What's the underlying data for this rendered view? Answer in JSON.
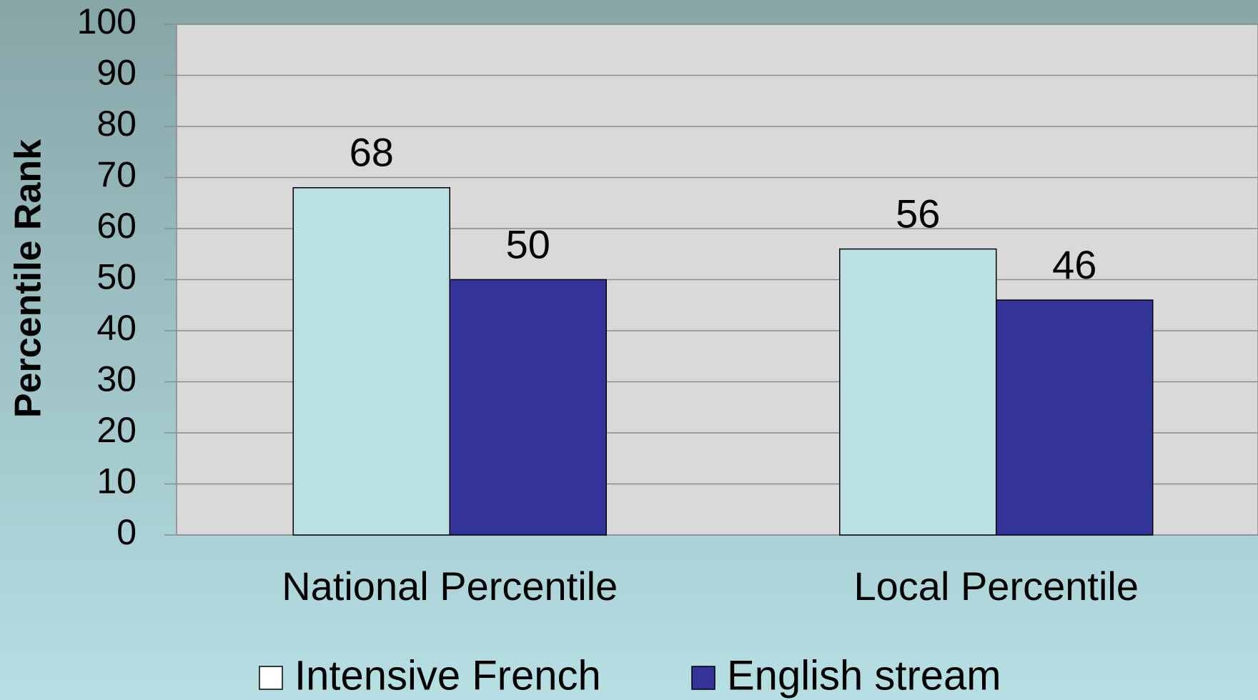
{
  "chart_data": {
    "type": "bar",
    "y_label": "Percentile Rank",
    "categories": [
      "National Percentile",
      "Local Percentile"
    ],
    "series": [
      {
        "name": "Intensive French",
        "color": "#b9e0e3",
        "values": [
          68,
          56
        ]
      },
      {
        "name": "English stream",
        "color": "#333399",
        "values": [
          50,
          46
        ]
      }
    ],
    "ylim": [
      0,
      100
    ],
    "yticks": [
      0,
      10,
      20,
      30,
      40,
      50,
      60,
      70,
      80,
      90,
      100
    ],
    "grid": true
  }
}
